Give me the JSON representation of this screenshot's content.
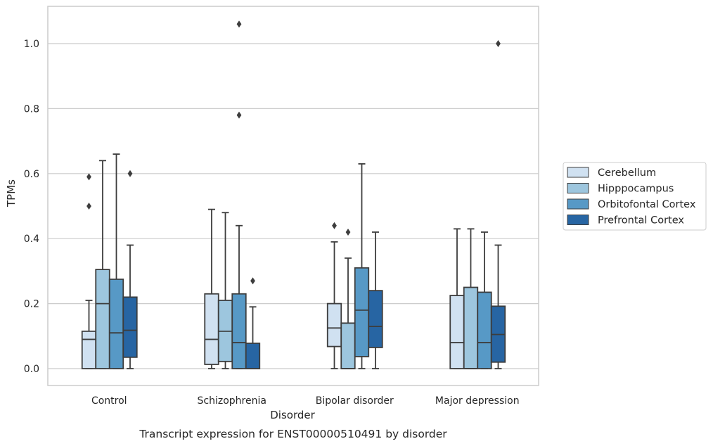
{
  "chart_data": {
    "type": "box",
    "caption": "Transcript expression for ENST00000510491 by disorder",
    "xlabel": "Disorder",
    "ylabel": "TPMs",
    "ylim": [
      -0.05,
      1.12
    ],
    "yticks": [
      "0.0",
      "0.2",
      "0.4",
      "0.6",
      "0.8",
      "1.0"
    ],
    "grid": "horizontal",
    "legend_placement": "right",
    "categories": [
      "Control",
      "Schizophrenia",
      "Bipolar disorder",
      "Major depression"
    ],
    "series": [
      {
        "name": "Cerebellum",
        "color": "#d0e1f1",
        "boxes": [
          {
            "min": 0.0,
            "q1": 0.0,
            "median": 0.09,
            "q3": 0.115,
            "max": 0.21,
            "outliers": [
              0.5,
              0.59
            ]
          },
          {
            "min": 0.0,
            "q1": 0.013,
            "median": 0.09,
            "q3": 0.23,
            "max": 0.49,
            "outliers": []
          },
          {
            "min": 0.0,
            "q1": 0.068,
            "median": 0.125,
            "q3": 0.2,
            "max": 0.39,
            "outliers": [
              0.44
            ]
          },
          {
            "min": 0.0,
            "q1": 0.0,
            "median": 0.08,
            "q3": 0.225,
            "max": 0.43,
            "outliers": []
          }
        ]
      },
      {
        "name": "Hipppocampus",
        "color": "#9dc6de",
        "boxes": [
          {
            "min": 0.0,
            "q1": 0.0,
            "median": 0.2,
            "q3": 0.305,
            "max": 0.64,
            "outliers": []
          },
          {
            "min": 0.0,
            "q1": 0.022,
            "median": 0.115,
            "q3": 0.21,
            "max": 0.48,
            "outliers": []
          },
          {
            "min": 0.0,
            "q1": 0.0,
            "median": 0.0,
            "q3": 0.14,
            "max": 0.34,
            "outliers": [
              0.42
            ]
          },
          {
            "min": 0.0,
            "q1": 0.0,
            "median": 0.0,
            "q3": 0.25,
            "max": 0.43,
            "outliers": []
          }
        ]
      },
      {
        "name": "Orbitofontal Cortex",
        "color": "#5799c6",
        "boxes": [
          {
            "min": 0.0,
            "q1": 0.0,
            "median": 0.11,
            "q3": 0.275,
            "max": 0.66,
            "outliers": []
          },
          {
            "min": 0.0,
            "q1": 0.0,
            "median": 0.08,
            "q3": 0.23,
            "max": 0.44,
            "outliers": [
              0.78,
              1.06
            ]
          },
          {
            "min": 0.0,
            "q1": 0.037,
            "median": 0.18,
            "q3": 0.31,
            "max": 0.63,
            "outliers": []
          },
          {
            "min": 0.0,
            "q1": 0.0,
            "median": 0.08,
            "q3": 0.235,
            "max": 0.42,
            "outliers": []
          }
        ]
      },
      {
        "name": "Prefrontal Cortex",
        "color": "#2765a3",
        "boxes": [
          {
            "min": 0.0,
            "q1": 0.035,
            "median": 0.118,
            "q3": 0.22,
            "max": 0.38,
            "outliers": [
              0.6
            ]
          },
          {
            "min": 0.0,
            "q1": 0.0,
            "median": 0.0,
            "q3": 0.078,
            "max": 0.19,
            "outliers": [
              0.27
            ]
          },
          {
            "min": 0.0,
            "q1": 0.065,
            "median": 0.13,
            "q3": 0.24,
            "max": 0.42,
            "outliers": []
          },
          {
            "min": 0.0,
            "q1": 0.02,
            "median": 0.105,
            "q3": 0.192,
            "max": 0.38,
            "outliers": [
              1.0
            ]
          }
        ]
      }
    ]
  }
}
